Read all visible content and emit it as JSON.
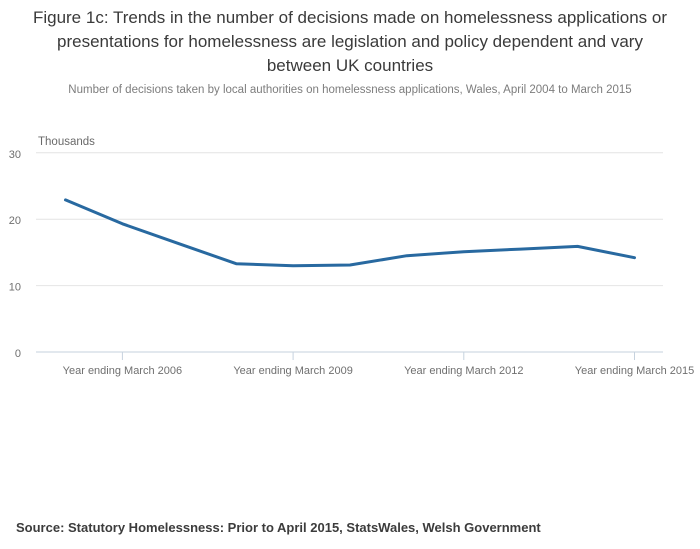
{
  "figure": {
    "title": "Figure 1c: Trends in the number of decisions made on homelessness applications or presentations for homelessness are legislation and policy dependent and vary between UK countries",
    "subtitle": "Number of decisions taken by local authorities on homelessness applications, Wales, April 2004 to March 2015",
    "source": "Source: Statutory Homelessness: Prior to April 2015, StatsWales, Welsh Government"
  },
  "chart_data": {
    "type": "line",
    "title": "Figure 1c: Trends in the number of decisions made on homelessness applications or presentations for homelessness are legislation and policy dependent and vary between UK countries",
    "subtitle": "Number of decisions taken by local authorities on homelessness applications, Wales, April 2004 to March 2015",
    "xlabel": "",
    "ylabel": "Thousands",
    "categories": [
      "Year ending March 2005",
      "Year ending March 2006",
      "Year ending March 2007",
      "Year ending March 2008",
      "Year ending March 2009",
      "Year ending March 2010",
      "Year ending March 2011",
      "Year ending March 2012",
      "Year ending March 2013",
      "Year ending March 2014",
      "Year ending March 2015"
    ],
    "values": [
      22.9,
      19.3,
      16.3,
      13.3,
      13.0,
      13.1,
      14.5,
      15.1,
      15.5,
      15.9,
      14.2
    ],
    "ylim": [
      0,
      30
    ],
    "yticks": [
      0,
      10,
      20,
      30
    ],
    "x_tick_labels": [
      "Year ending March 2006",
      "Year ending March 2009",
      "Year ending March 2012",
      "Year ending March 2015"
    ],
    "x_tick_indices": [
      1,
      4,
      7,
      10
    ],
    "grid": "horizontal",
    "legend": "none",
    "line_color": "#2869a0"
  },
  "colors": {
    "line": "#2869a0",
    "gridline": "#e4e4e4",
    "axis": "#c6d2de",
    "axis_text": "#6f6f6f",
    "unit_text": "#6a6a6a",
    "title_text": "#3a3a3a",
    "subtitle_text": "#7d7d7d",
    "source_text": "#3c3c3c"
  }
}
